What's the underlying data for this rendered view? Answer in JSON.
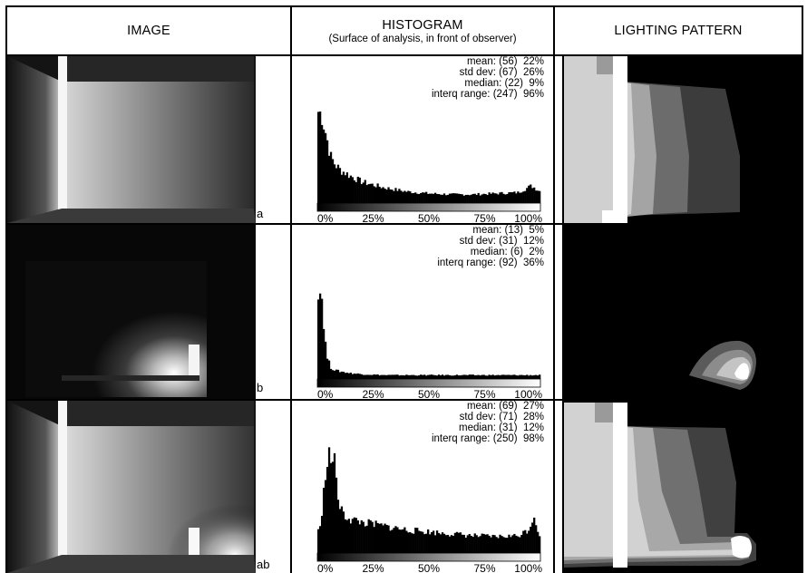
{
  "headers": {
    "image": "IMAGE",
    "histogram": "HISTOGRAM",
    "histogram_sub": "(Surface of analysis, in front of observer)",
    "pattern": "LIGHTING PATTERN"
  },
  "axis_ticks": [
    "0%",
    "25%",
    "50%",
    "75%",
    "100%"
  ],
  "rows": [
    {
      "label": "a",
      "stats": [
        {
          "name": "mean:",
          "abs": "(56)",
          "pct": "22%"
        },
        {
          "name": "std dev:",
          "abs": "(67)",
          "pct": "26%"
        },
        {
          "name": "median:",
          "abs": "(22)",
          "pct": "9%"
        },
        {
          "name": "interq range:",
          "abs": "(247)",
          "pct": "96%"
        }
      ]
    },
    {
      "label": "b",
      "stats": [
        {
          "name": "mean:",
          "abs": "(13)",
          "pct": "5%"
        },
        {
          "name": "std dev:",
          "abs": "(31)",
          "pct": "12%"
        },
        {
          "name": "median:",
          "abs": "(6)",
          "pct": "2%"
        },
        {
          "name": "interq range:",
          "abs": "(92)",
          "pct": "36%"
        }
      ]
    },
    {
      "label": "ab",
      "stats": [
        {
          "name": "mean:",
          "abs": "(69)",
          "pct": "27%"
        },
        {
          "name": "std dev:",
          "abs": "(71)",
          "pct": "28%"
        },
        {
          "name": "median:",
          "abs": "(31)",
          "pct": "12%"
        },
        {
          "name": "interq range:",
          "abs": "(250)",
          "pct": "98%"
        }
      ]
    }
  ],
  "chart_data": [
    {
      "type": "bar",
      "label": "a",
      "x_tick_labels": [
        "0%",
        "25%",
        "50%",
        "75%",
        "100%"
      ],
      "x": [
        0,
        2,
        4,
        6,
        8,
        10,
        15,
        20,
        30,
        40,
        50,
        60,
        70,
        80,
        90,
        96,
        100
      ],
      "values": [
        96,
        92,
        70,
        48,
        40,
        35,
        28,
        22,
        16,
        12,
        10,
        9,
        9,
        10,
        11,
        18,
        12
      ],
      "y_relative_max": 100
    },
    {
      "type": "bar",
      "label": "b",
      "x_tick_labels": [
        "0%",
        "25%",
        "50%",
        "75%",
        "100%"
      ],
      "x": [
        0,
        2,
        4,
        6,
        8,
        10,
        15,
        20,
        30,
        40,
        50,
        60,
        70,
        80,
        90,
        100
      ],
      "values": [
        100,
        85,
        25,
        12,
        9,
        8,
        6,
        5,
        4,
        4,
        4,
        4,
        4,
        4,
        4,
        4
      ],
      "y_relative_max": 100
    },
    {
      "type": "bar",
      "label": "ab",
      "x_tick_labels": [
        "0%",
        "25%",
        "50%",
        "75%",
        "100%"
      ],
      "x": [
        0,
        2,
        4,
        6,
        8,
        10,
        12,
        15,
        20,
        30,
        40,
        50,
        60,
        70,
        80,
        90,
        95,
        97,
        100
      ],
      "values": [
        22,
        35,
        100,
        100,
        90,
        45,
        40,
        35,
        32,
        28,
        24,
        22,
        20,
        18,
        17,
        18,
        25,
        40,
        15
      ],
      "y_relative_max": 100
    }
  ]
}
